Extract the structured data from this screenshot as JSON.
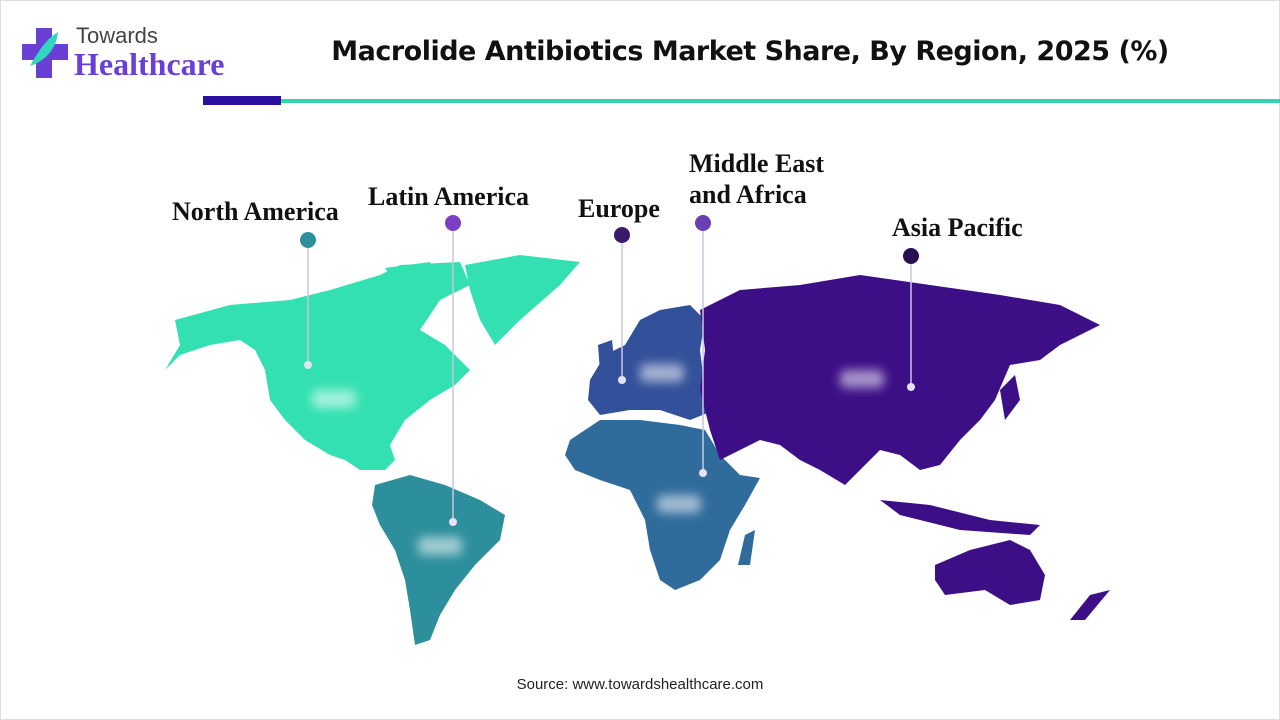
{
  "header": {
    "logo_top": "Towards",
    "logo_bottom": "Healthcare",
    "title": "Macrolide Antibiotics Market Share, By Region, 2025 (%)"
  },
  "colors": {
    "north_america": "#33e0b2",
    "latin_america": "#2e8f9c",
    "europe": "#33519a",
    "middle_east_africa": "#2f6b9b",
    "asia_pacific": "#3d0f86",
    "accent_dark": "#2c0f9e",
    "accent_teal": "#2fd6ad"
  },
  "regions": [
    {
      "name": "North America",
      "marker_color": "#2e8f9c"
    },
    {
      "name": "Latin America",
      "marker_color": "#7a3fc2"
    },
    {
      "name": "Europe",
      "marker_color": "#3a1a6a"
    },
    {
      "name_line1": "Middle East",
      "name_line2": "and Africa",
      "marker_color": "#6a3fb2"
    },
    {
      "name": "Asia Pacific",
      "marker_color": "#2a0f55"
    }
  ],
  "footer": {
    "source": "Source: www.towardshealthcare.com"
  }
}
